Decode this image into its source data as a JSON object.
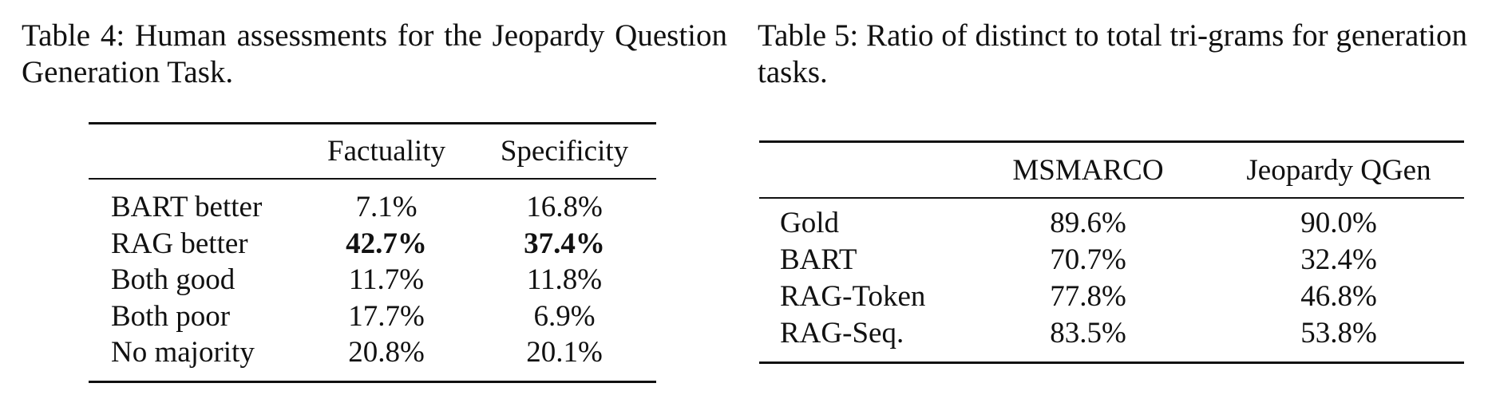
{
  "table4": {
    "caption": "Table 4: Human assessments for the Jeopardy Question Generation Task.",
    "header": [
      "Factuality",
      "Specificity"
    ],
    "rows": [
      [
        "BART better",
        "7.1%",
        "16.8%"
      ],
      [
        "RAG better",
        "42.7%",
        "37.4%"
      ],
      [
        "Both good",
        "11.7%",
        "11.8%"
      ],
      [
        "Both poor",
        "17.7%",
        "6.9%"
      ],
      [
        "No majority",
        "20.8%",
        "20.1%"
      ]
    ]
  },
  "table5": {
    "caption": "Table 5: Ratio of distinct to total tri-grams for generation tasks.",
    "header": [
      "MSMARCO",
      "Jeopardy QGen"
    ],
    "rows": [
      [
        "Gold",
        "89.6%",
        "90.0%"
      ],
      [
        "BART",
        "70.7%",
        "32.4%"
      ],
      [
        "RAG-Token",
        "77.8%",
        "46.8%"
      ],
      [
        "RAG-Seq.",
        "83.5%",
        "53.8%"
      ]
    ]
  }
}
